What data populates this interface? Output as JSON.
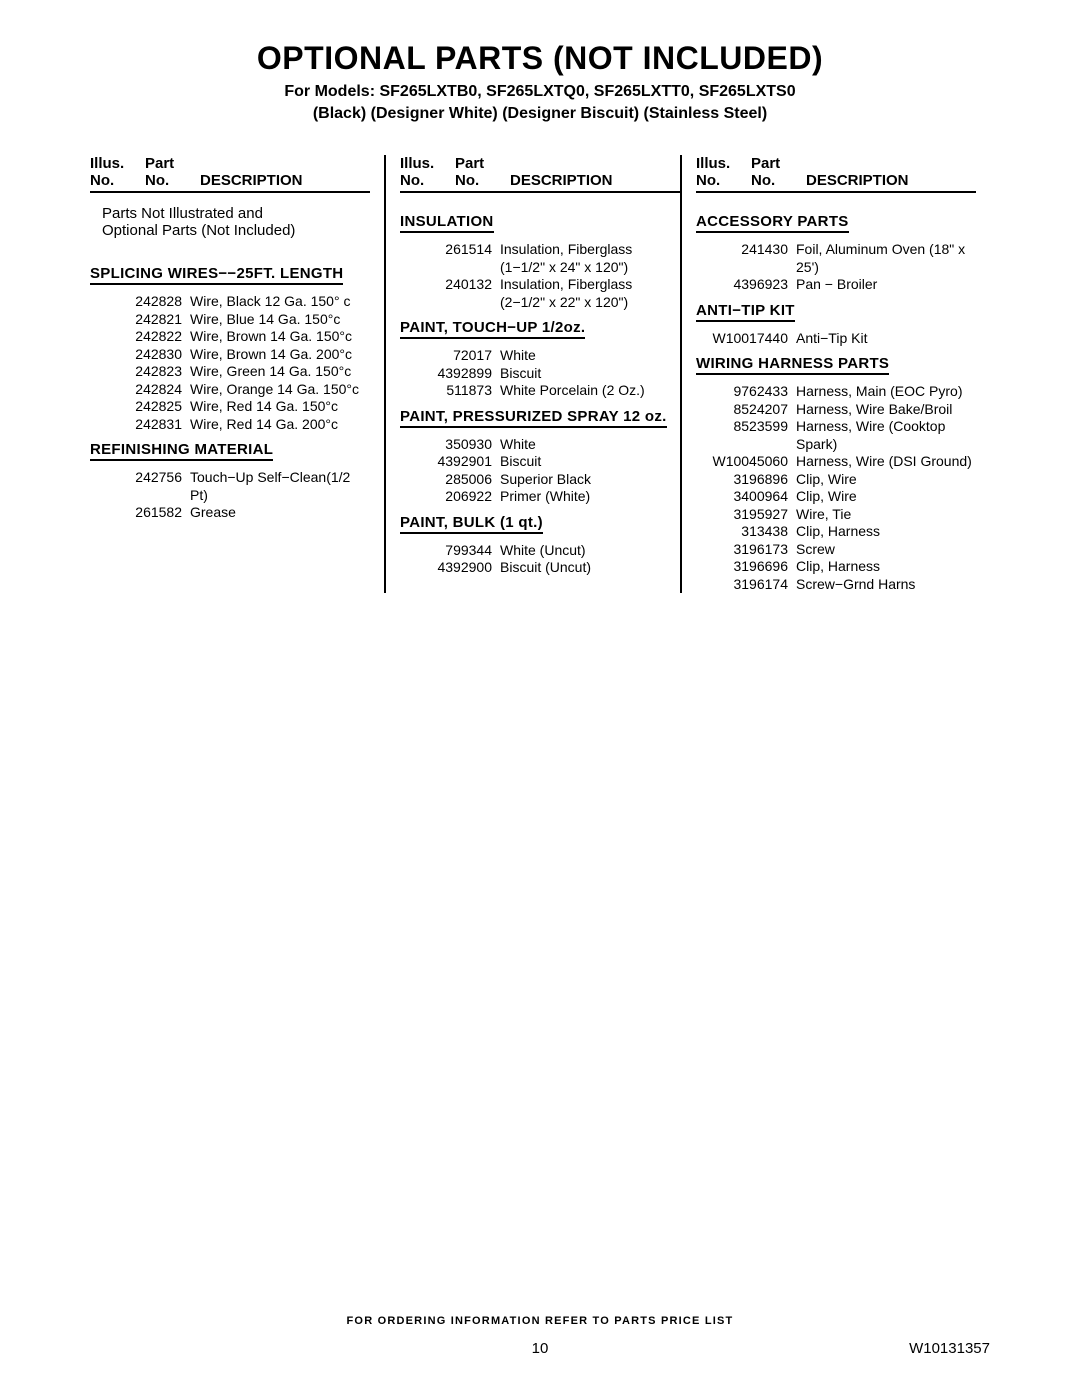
{
  "title": "OPTIONAL PARTS (NOT INCLUDED)",
  "models_line": "For Models: SF265LXTB0, SF265LXTQ0, SF265LXTT0, SF265LXTS0",
  "colors_line": "(Black) (Designer White) (Designer Biscuit) (Stainless Steel)",
  "header": {
    "illus1": "Illus.",
    "illus2": "No.",
    "part1": "Part",
    "part2": "No.",
    "desc": "DESCRIPTION"
  },
  "intro": {
    "line1": "Parts Not Illustrated and",
    "line2": "Optional Parts (Not Included)"
  },
  "col1": {
    "sec1": {
      "title": "SPLICING WIRES−−25FT. LENGTH",
      "parts": [
        {
          "pn": "242828",
          "pd": "Wire, Black 12 Ga. 150° c"
        },
        {
          "pn": "242821",
          "pd": "Wire, Blue 14 Ga. 150°c"
        },
        {
          "pn": "242822",
          "pd": "Wire, Brown 14 Ga. 150°c"
        },
        {
          "pn": "242830",
          "pd": "Wire, Brown 14 Ga. 200°c"
        },
        {
          "pn": "242823",
          "pd": "Wire, Green 14 Ga. 150°c"
        },
        {
          "pn": "242824",
          "pd": "Wire, Orange 14 Ga. 150°c"
        },
        {
          "pn": "242825",
          "pd": "Wire, Red 14 Ga. 150°c"
        },
        {
          "pn": "242831",
          "pd": "Wire, Red 14 Ga. 200°c"
        }
      ]
    },
    "sec2": {
      "title": "REFINISHING MATERIAL",
      "parts": [
        {
          "pn": "242756",
          "pd": "Touch−Up Self−Clean(1/2 Pt)"
        },
        {
          "pn": "261582",
          "pd": "Grease"
        }
      ]
    }
  },
  "col2": {
    "sec1": {
      "title": "INSULATION",
      "parts": [
        {
          "pn": "261514",
          "pd": "Insulation, Fiberglass (1−1/2\" x 24\" x 120\")"
        },
        {
          "pn": "240132",
          "pd": "Insulation, Fiberglass (2−1/2\" x 22\" x 120\")"
        }
      ]
    },
    "sec2": {
      "title": "PAINT, TOUCH−UP 1/2oz.",
      "parts": [
        {
          "pn": "72017",
          "pd": "White"
        },
        {
          "pn": "4392899",
          "pd": "Biscuit"
        },
        {
          "pn": "511873",
          "pd": "White Porcelain (2 Oz.)"
        }
      ]
    },
    "sec3": {
      "title": "PAINT, PRESSURIZED SPRAY 12 oz.",
      "parts": [
        {
          "pn": "350930",
          "pd": "White"
        },
        {
          "pn": "4392901",
          "pd": "Biscuit"
        },
        {
          "pn": "285006",
          "pd": "Superior Black"
        },
        {
          "pn": "206922",
          "pd": "Primer (White)"
        }
      ]
    },
    "sec4": {
      "title": "PAINT, BULK (1 qt.)",
      "parts": [
        {
          "pn": "799344",
          "pd": "White (Uncut)"
        },
        {
          "pn": "4392900",
          "pd": "Biscuit (Uncut)"
        }
      ]
    }
  },
  "col3": {
    "sec1": {
      "title": "ACCESSORY PARTS",
      "parts": [
        {
          "pn": "241430",
          "pd": "Foil, Aluminum Oven (18\" x 25')"
        },
        {
          "pn": "4396923",
          "pd": "Pan − Broiler"
        }
      ]
    },
    "sec2": {
      "title": "ANTI−TIP KIT",
      "parts": [
        {
          "pn": "W10017440",
          "pd": "Anti−Tip Kit"
        }
      ]
    },
    "sec3": {
      "title": "WIRING HARNESS PARTS",
      "parts": [
        {
          "pn": "9762433",
          "pd": "Harness, Main (EOC Pyro)"
        },
        {
          "pn": "8524207",
          "pd": "Harness, Wire Bake/Broil"
        },
        {
          "pn": "8523599",
          "pd": "Harness, Wire (Cooktop Spark)"
        },
        {
          "pn": "W10045060",
          "pd": "Harness, Wire (DSI Ground)"
        },
        {
          "pn": "3196896",
          "pd": "Clip, Wire"
        },
        {
          "pn": "3400964",
          "pd": "Clip, Wire"
        },
        {
          "pn": "3195927",
          "pd": "Wire, Tie"
        },
        {
          "pn": "313438",
          "pd": "Clip, Harness"
        },
        {
          "pn": "3196173",
          "pd": "Screw"
        },
        {
          "pn": "3196696",
          "pd": "Clip, Harness"
        },
        {
          "pn": "3196174",
          "pd": "Screw−Grnd Harns"
        }
      ]
    }
  },
  "footer": {
    "note": "FOR ORDERING INFORMATION REFER TO PARTS PRICE LIST",
    "page": "10",
    "doc": "W10131357"
  }
}
